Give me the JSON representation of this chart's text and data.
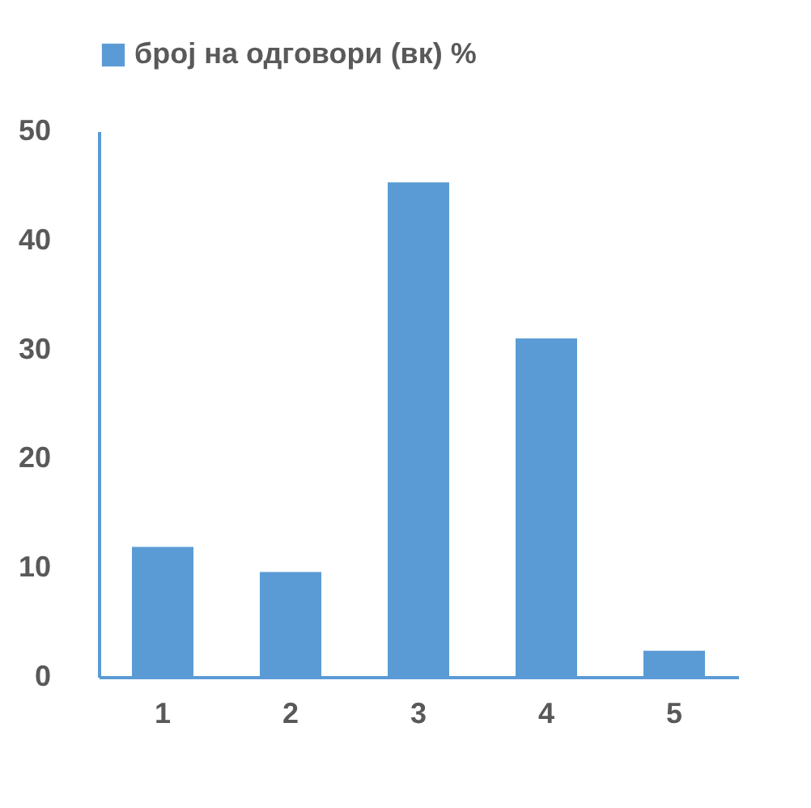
{
  "chart_data": {
    "type": "bar",
    "categories": [
      "1",
      "2",
      "3",
      "4",
      "5"
    ],
    "series": [
      {
        "name": "број на одговори (вк) %",
        "color": "#5b9bd5",
        "values": [
          11.9,
          9.6,
          45.3,
          31.0,
          2.4
        ]
      }
    ],
    "ylim": [
      0,
      50
    ],
    "yticks": [
      0,
      10,
      20,
      30,
      40,
      50
    ],
    "grid": false,
    "legend": "top"
  }
}
